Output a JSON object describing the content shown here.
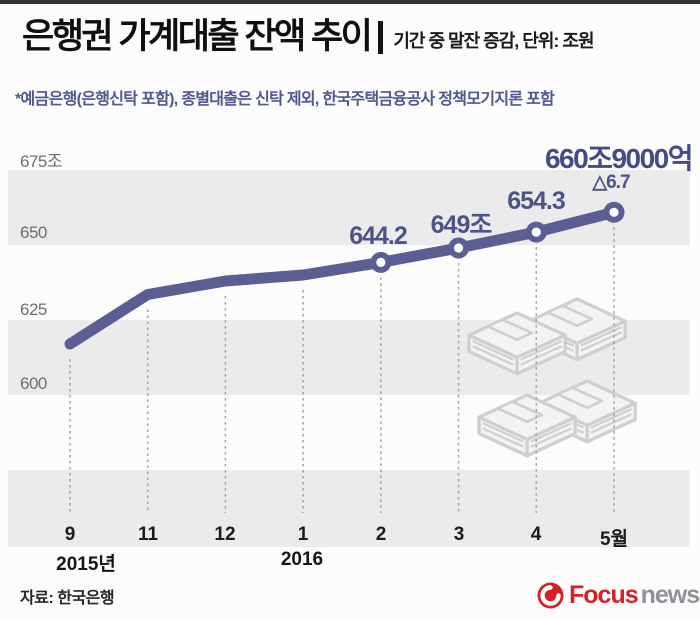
{
  "header": {
    "title": "은행권 가계대출 잔액 추이",
    "subtitle": "기간 중 말잔 증감, 단위: 조원",
    "note": "*예금은행(은행신탁 포함), 종별대출은 신탁 제외, 한국주택금융공사 정책모기지론 포함"
  },
  "chart_data": {
    "type": "line",
    "title": "은행권 가계대출 잔액 추이",
    "subtitle": "기간 중 말잔 증감, 단위: 조원",
    "unit": "조원",
    "x": [
      "9",
      "11",
      "12",
      "1",
      "2",
      "3",
      "4",
      "5월"
    ],
    "x_axis_years": [
      {
        "label": "2015년",
        "under_tick": "9"
      },
      {
        "label": "2016",
        "under_tick": "1"
      }
    ],
    "values": [
      617,
      633.5,
      638,
      640,
      644.2,
      649,
      654.3,
      660.9
    ],
    "values_estimated_from_plot": [
      true,
      true,
      true,
      true,
      false,
      false,
      false,
      false
    ],
    "point_labels": [
      "",
      "",
      "",
      "",
      "644.2",
      "649조",
      "654.3",
      "660조9000억"
    ],
    "last_point_delta": "△6.7",
    "yticks": [
      {
        "value": 675,
        "label": "675조"
      },
      {
        "value": 650,
        "label": "650"
      },
      {
        "value": 625,
        "label": "625"
      },
      {
        "value": 600,
        "label": "600"
      }
    ],
    "ylim": [
      575,
      683
    ],
    "grid": "alternating horizontal bands every 25, dashed vertical stems at each point",
    "legend": "none",
    "line_color": "#5b5e93",
    "band_color": "#ebebeb"
  },
  "footer": {
    "source": "자료: 한국은행",
    "logo_focus": "Focus",
    "logo_news": "news"
  },
  "colors": {
    "accent_indigo": "#5b5e93",
    "label_indigo": "#4d5289",
    "logo_red": "#d6202a",
    "logo_gray": "#8d9298",
    "band_gray": "#ebebeb",
    "watermark_gray": "#cfcfcf"
  }
}
